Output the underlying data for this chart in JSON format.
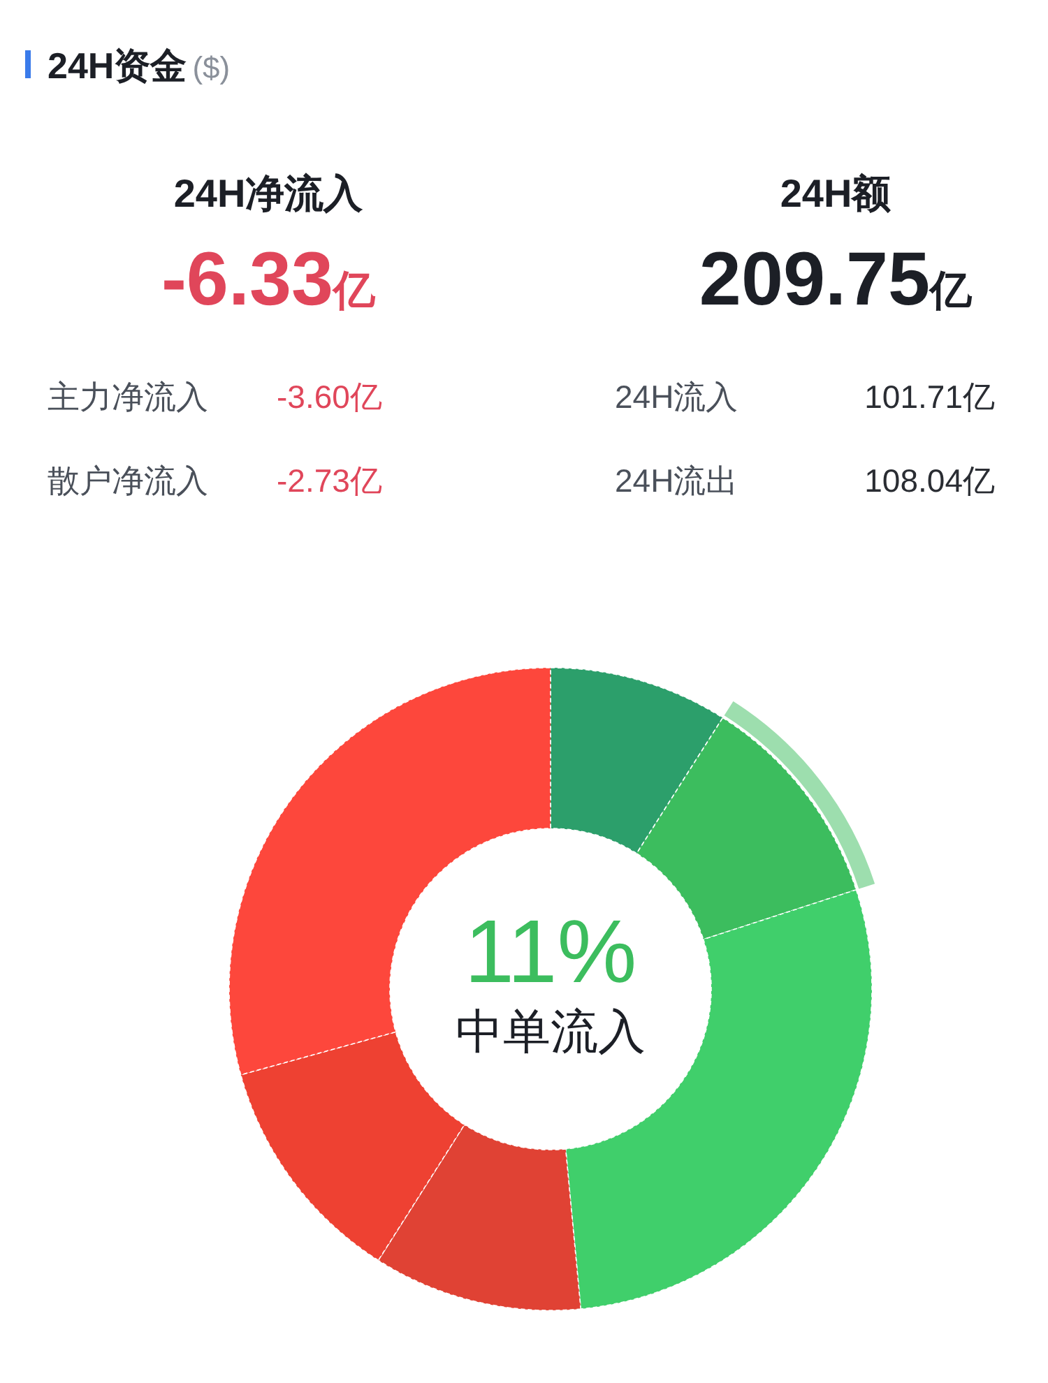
{
  "chart_data": [
    {
      "type": "other",
      "title": "24H资金",
      "subtitle": "($)",
      "annotations": [
        "24H净流入",
        "-6.33亿",
        "24H额",
        "209.75亿",
        "主力净流入",
        "-3.60亿",
        "24H流入",
        "101.71亿",
        "散户净流入",
        "-2.73亿",
        "24H流出",
        "108.04亿"
      ]
    },
    {
      "type": "donut",
      "annotations": [
        "11%",
        "中单流入"
      ],
      "categories": [
        null,
        null,
        null,
        null,
        null,
        null
      ],
      "values": [
        9,
        11,
        28.5,
        10.5,
        11.7,
        29.3
      ],
      "colors": [
        "#2c9f6b",
        "#3cbd5e",
        "#40cf6b",
        "#e04234",
        "#ee4132",
        "#fd473c"
      ]
    }
  ]
}
